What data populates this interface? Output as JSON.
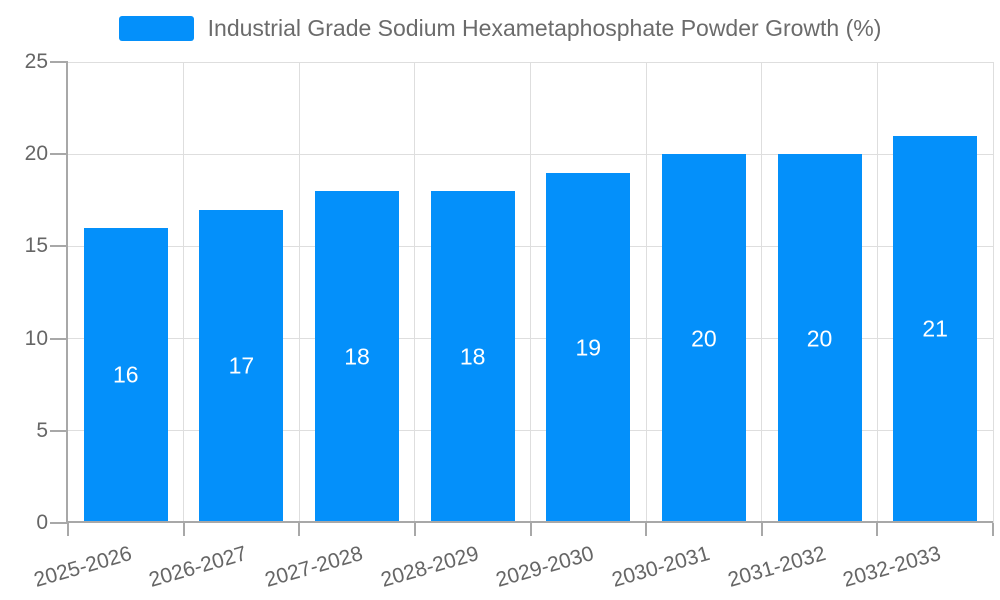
{
  "chart_data": {
    "type": "bar",
    "title": "Industrial Grade Sodium Hexametaphosphate Powder Growth (%)",
    "categories": [
      "2025-2026",
      "2026-2027",
      "2027-2028",
      "2028-2029",
      "2029-2030",
      "2030-2031",
      "2031-2032",
      "2032-2033"
    ],
    "values": [
      16,
      17,
      18,
      18,
      19,
      20,
      20,
      21
    ],
    "xlabel": "",
    "ylabel": "",
    "ylim": [
      0,
      25
    ],
    "yticks": [
      0,
      5,
      10,
      15,
      20,
      25
    ],
    "legend_position": "top",
    "grid": true,
    "x_tick_label_rotation_deg": -16,
    "colors": {
      "bar": "#0490fa",
      "grid": "#dedede",
      "axis": "#a8a8a8",
      "tick_text": "#666666",
      "legend_text": "#6b6b6b",
      "value_label": "#ffffff",
      "background": "#ffffff"
    }
  }
}
